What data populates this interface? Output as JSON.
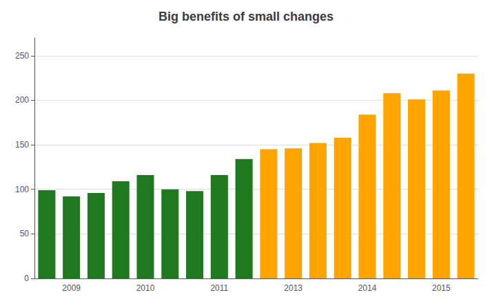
{
  "chart_data": {
    "type": "bar",
    "title": "Big benefits of small changes",
    "categories": [
      null,
      "2009",
      null,
      null,
      "2010",
      null,
      null,
      "2011",
      null,
      null,
      "2013",
      null,
      null,
      "2014",
      null,
      null,
      "2015",
      null
    ],
    "values": [
      99,
      92,
      96,
      109,
      116,
      100,
      98,
      116,
      134,
      145,
      146,
      152,
      158,
      184,
      208,
      201,
      211,
      230
    ],
    "colors": [
      "#1f7a1f",
      "#1f7a1f",
      "#1f7a1f",
      "#1f7a1f",
      "#1f7a1f",
      "#1f7a1f",
      "#1f7a1f",
      "#1f7a1f",
      "#1f7a1f",
      "#FFA500",
      "#FFA500",
      "#FFA500",
      "#FFA500",
      "#FFA500",
      "#FFA500",
      "#FFA500",
      "#FFA500",
      "#FFA500"
    ],
    "ylim": [
      0,
      270
    ],
    "yticks": [
      0,
      50,
      100,
      150,
      200,
      250
    ],
    "grid": true
  }
}
